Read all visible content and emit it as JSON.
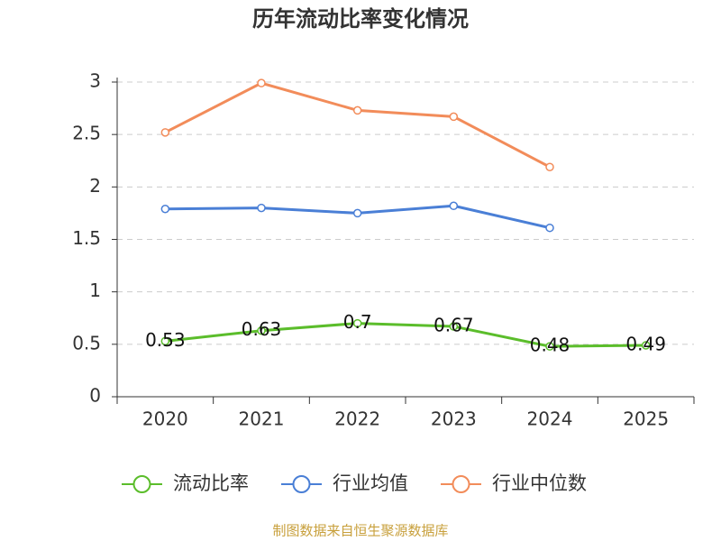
{
  "chart_data": {
    "type": "line",
    "title": "历年流动比率变化情况",
    "categories": [
      "2020",
      "2021",
      "2022",
      "2023",
      "2024",
      "2025"
    ],
    "series": [
      {
        "name": "流动比率",
        "color": "#5bbd2b",
        "values": [
          0.53,
          0.63,
          0.7,
          0.67,
          0.48,
          0.49
        ],
        "show_labels": true
      },
      {
        "name": "行业均值",
        "color": "#4a7fd6",
        "values": [
          1.79,
          1.8,
          1.75,
          1.82,
          1.61,
          null
        ]
      },
      {
        "name": "行业中位数",
        "color": "#f28c5a",
        "values": [
          2.52,
          2.99,
          2.73,
          2.67,
          2.19,
          null
        ]
      }
    ],
    "ylim": [
      0,
      3
    ],
    "yticks": [
      0,
      0.5,
      1,
      1.5,
      2,
      2.5,
      3
    ],
    "grid": true,
    "legend": "bottom",
    "source": "制图数据来自恒生聚源数据库"
  }
}
